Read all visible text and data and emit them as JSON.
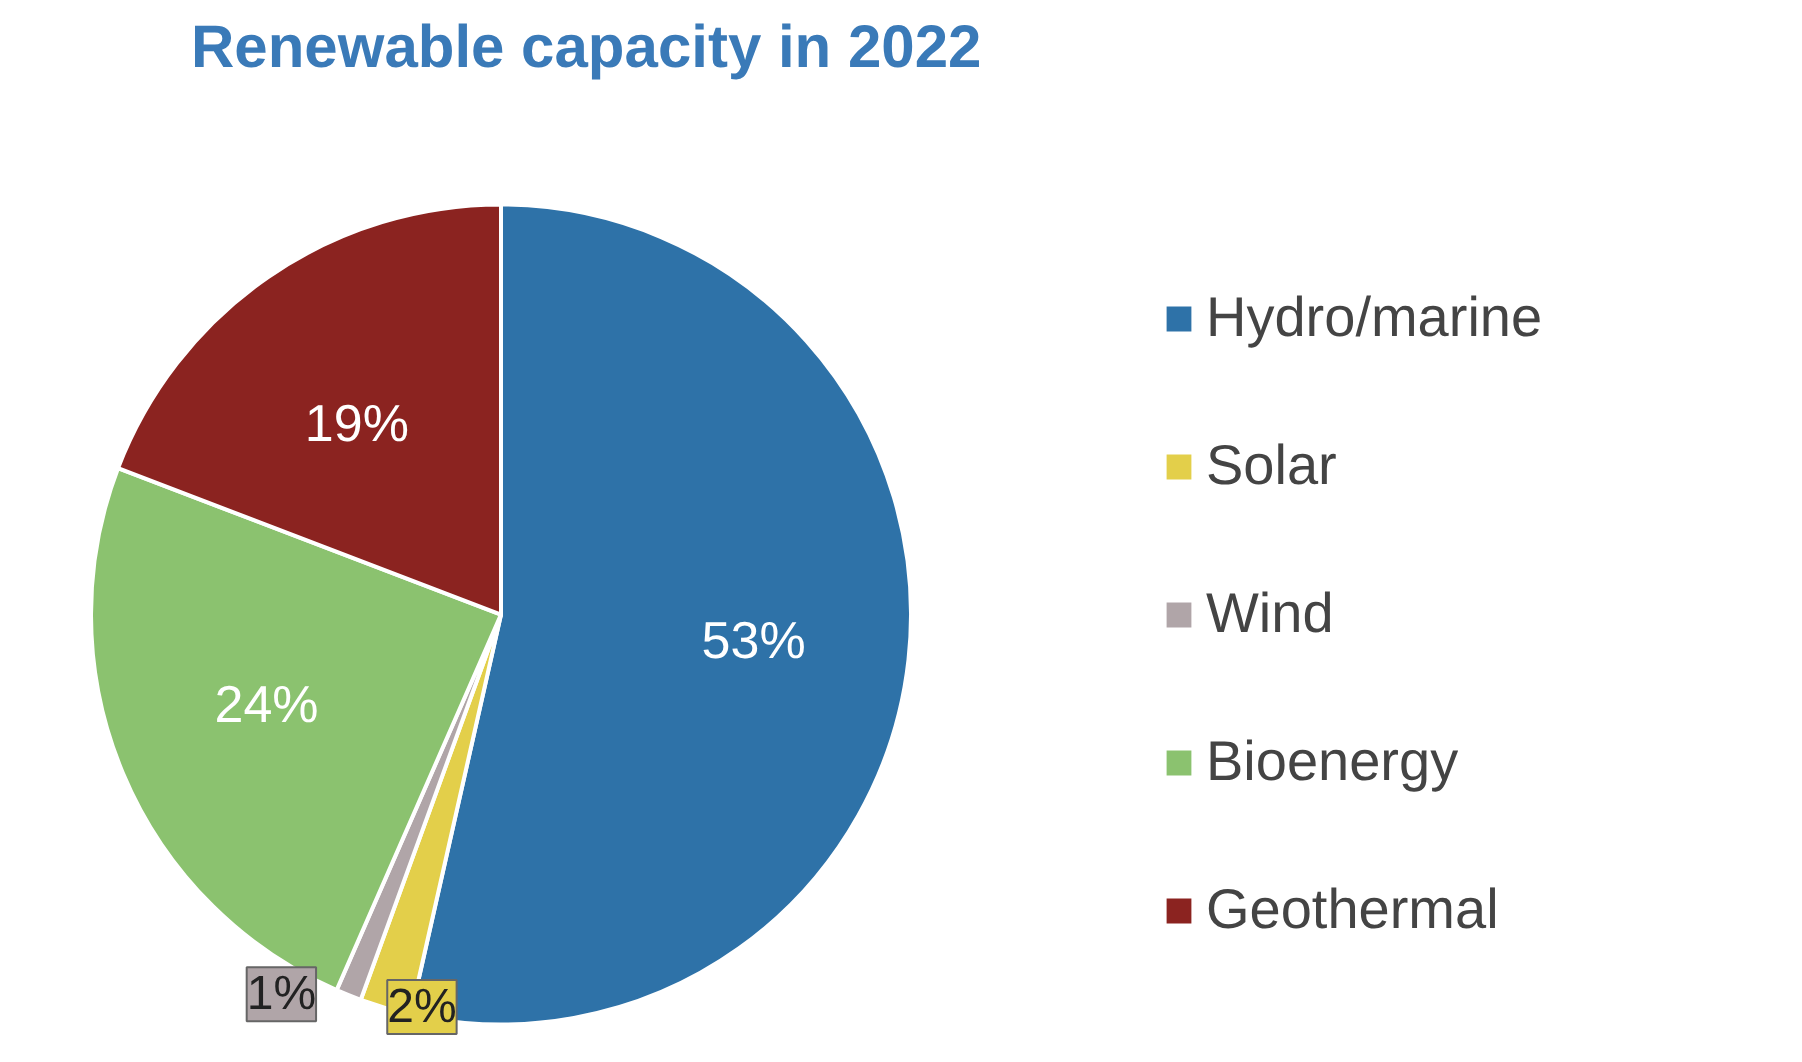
{
  "chart_data": {
    "type": "pie",
    "title": "Renewable capacity in 2022",
    "categories": [
      "Hydro/marine",
      "Solar",
      "Wind",
      "Bioenergy",
      "Geothermal"
    ],
    "values": [
      53,
      2,
      1,
      24,
      19
    ],
    "colors": [
      "#2e72a8",
      "#e3cf4a",
      "#b0a5a8",
      "#8bc26f",
      "#8b2320"
    ],
    "value_labels": [
      "53%",
      "2%",
      "1%",
      "24%",
      "19%"
    ],
    "legend": "right"
  }
}
